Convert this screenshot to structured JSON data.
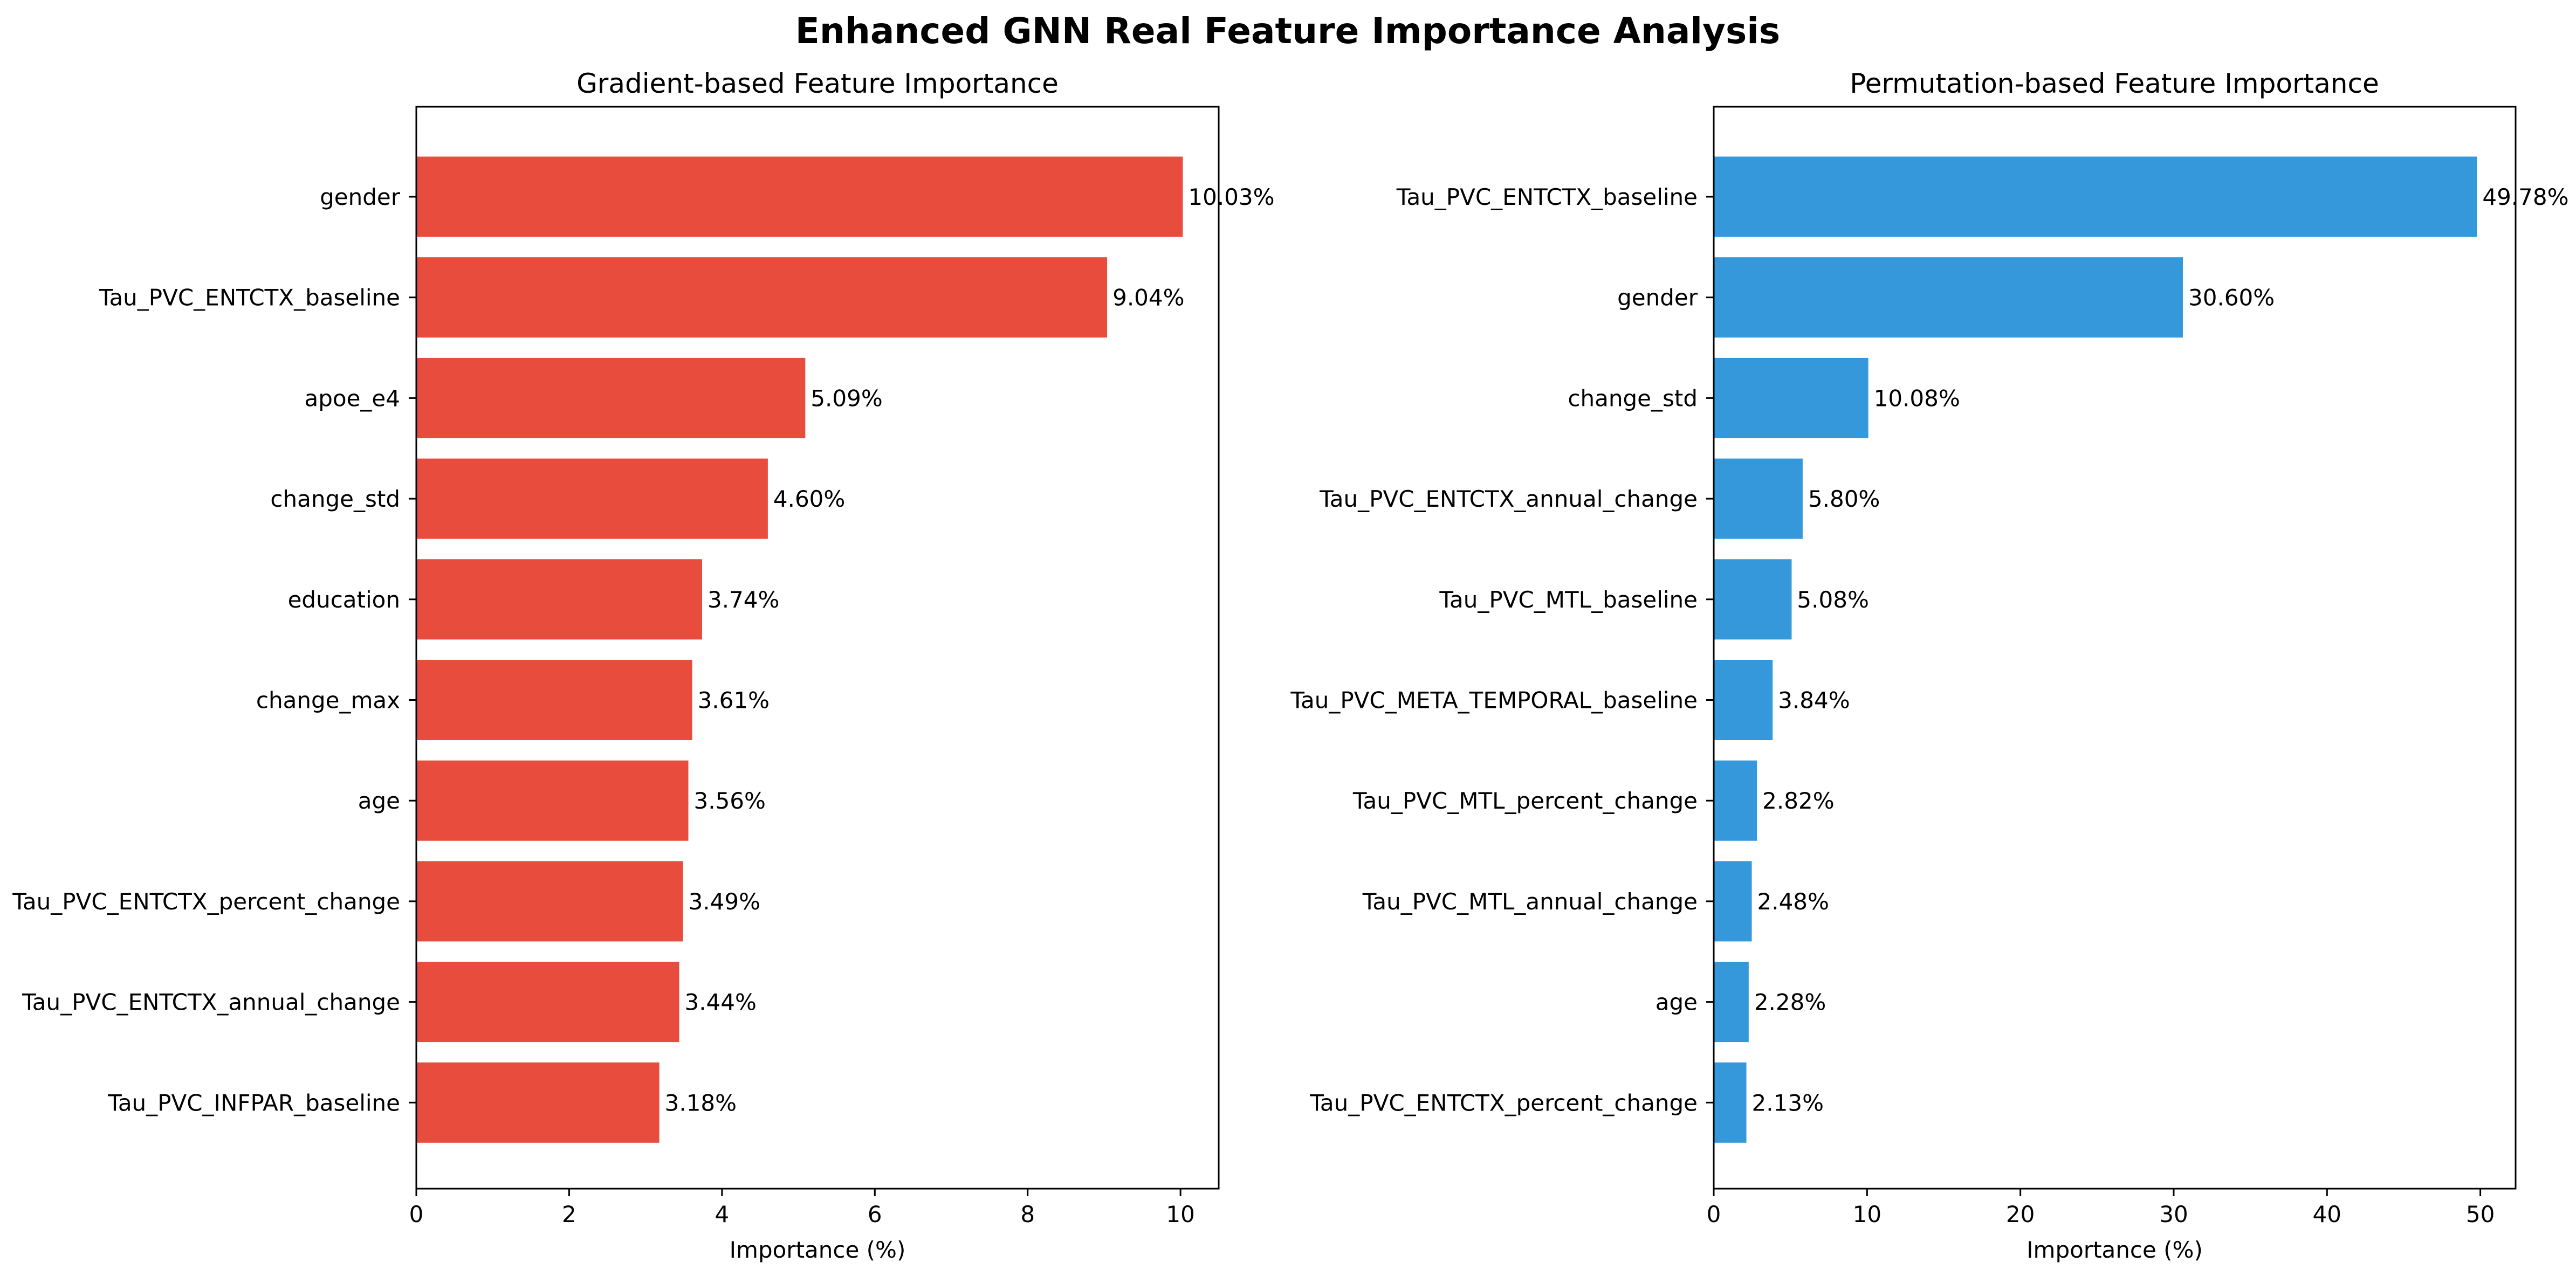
{
  "figure": {
    "title": "Enhanced GNN Real Feature Importance Analysis"
  },
  "chart_data": [
    {
      "type": "bar",
      "orientation": "horizontal",
      "title": "Gradient-based Feature Importance",
      "xlabel": "Importance (%)",
      "ylabel": "",
      "xlim": [
        0,
        10.5
      ],
      "xticks": [
        0,
        2,
        4,
        6,
        8,
        10
      ],
      "grid": false,
      "color": "#e74c3c",
      "categories": [
        "gender",
        "Tau_PVC_ENTCTX_baseline",
        "apoe_e4",
        "change_std",
        "education",
        "change_max",
        "age",
        "Tau_PVC_ENTCTX_percent_change",
        "Tau_PVC_ENTCTX_annual_change",
        "Tau_PVC_INFPAR_baseline"
      ],
      "values": [
        10.03,
        9.04,
        5.09,
        4.6,
        3.74,
        3.61,
        3.56,
        3.49,
        3.44,
        3.18
      ],
      "data_labels": [
        "10.03%",
        "9.04%",
        "5.09%",
        "4.60%",
        "3.74%",
        "3.61%",
        "3.56%",
        "3.49%",
        "3.44%",
        "3.18%"
      ]
    },
    {
      "type": "bar",
      "orientation": "horizontal",
      "title": "Permutation-based Feature Importance",
      "xlabel": "Importance (%)",
      "ylabel": "",
      "xlim": [
        0,
        52.3
      ],
      "xticks": [
        0,
        10,
        20,
        30,
        40,
        50
      ],
      "grid": false,
      "color": "#3498db",
      "categories": [
        "Tau_PVC_ENTCTX_baseline",
        "gender",
        "change_std",
        "Tau_PVC_ENTCTX_annual_change",
        "Tau_PVC_MTL_baseline",
        "Tau_PVC_META_TEMPORAL_baseline",
        "Tau_PVC_MTL_percent_change",
        "Tau_PVC_MTL_annual_change",
        "age",
        "Tau_PVC_ENTCTX_percent_change"
      ],
      "values": [
        49.78,
        30.6,
        10.08,
        5.8,
        5.08,
        3.84,
        2.82,
        2.48,
        2.28,
        2.13
      ],
      "data_labels": [
        "49.78%",
        "30.60%",
        "10.08%",
        "5.80%",
        "5.08%",
        "3.84%",
        "2.82%",
        "2.48%",
        "2.28%",
        "2.13%"
      ]
    }
  ]
}
